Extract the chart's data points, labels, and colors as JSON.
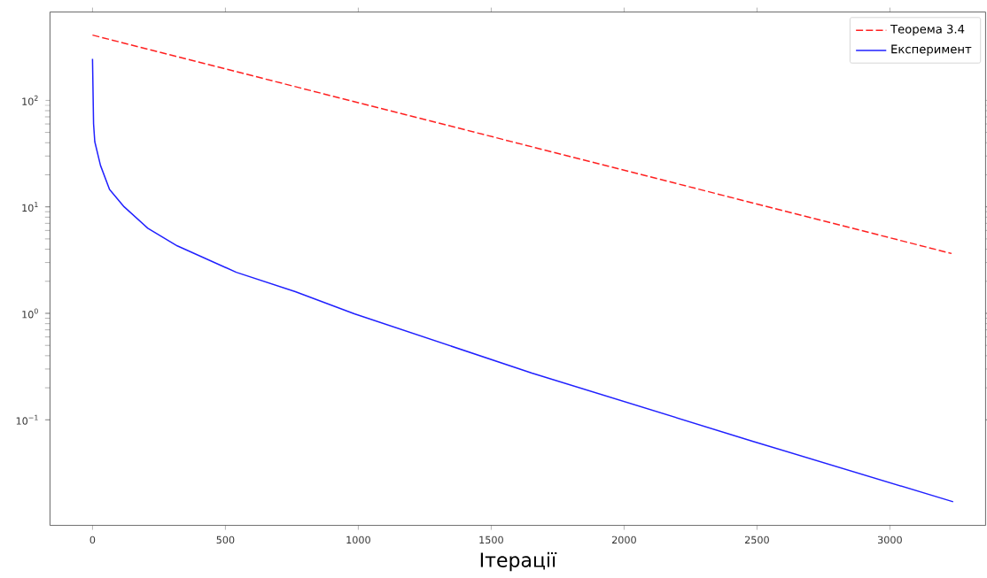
{
  "chart_data": {
    "type": "line",
    "xlabel": "Ітерації",
    "log": "y",
    "legend": "top right",
    "xlim": [
      -160,
      3360
    ],
    "ylim": [
      0.0102,
      675
    ],
    "xticks": [
      0,
      500,
      1000,
      1500,
      2000,
      2500,
      3000
    ],
    "yticks": [
      {
        "value": 0.1,
        "label": "10$^{−1}$"
      },
      {
        "value": 1,
        "label": "10$^{0}$"
      },
      {
        "value": 10,
        "label": "10$^{1}$"
      },
      {
        "value": 100,
        "label": "10$^{2}$"
      }
    ],
    "series": [
      {
        "name": "Теорема 3.4",
        "color": "#ff2020",
        "line_style": "dashed",
        "x": [
          0,
          3232
        ],
        "values": [
          410,
          3.65
        ]
      },
      {
        "name": "Експеримент",
        "color": "#2020ff",
        "line_style": "solid",
        "x": [
          0,
          4,
          8.5,
          30,
          64,
          119,
          208,
          319,
          541,
          763,
          985,
          1653,
          2483,
          3238
        ],
        "values": [
          245,
          60,
          41,
          24.5,
          14.6,
          10,
          6.3,
          4.3,
          2.43,
          1.6,
          0.99,
          0.275,
          0.063,
          0.017
        ]
      }
    ]
  }
}
